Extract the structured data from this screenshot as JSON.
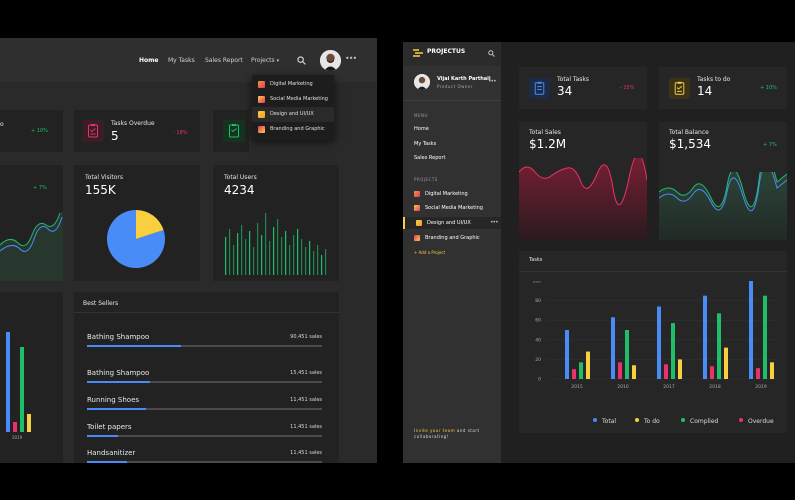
{
  "left": {
    "nav": {
      "home": "Home",
      "my_tasks": "My Tasks",
      "sales_report": "Sales Report",
      "projects": "Projects"
    },
    "projects_dropdown": [
      "Digital Marketing",
      "Social Media Marketing",
      "Design and UI/UX",
      "Branding and Graphic"
    ],
    "cards": {
      "cut_delta": "+ 10%",
      "tasks_overdue": {
        "label": "Tasks Overdue",
        "value": "5",
        "delta": "- 18%"
      },
      "total_visitors": {
        "label": "Total Visitors",
        "value": "155K"
      },
      "total_users": {
        "label": "Total Users",
        "value": "4234"
      },
      "cut_delta2": "+ 7%"
    },
    "pie": {
      "segments": [
        0.8,
        0.2
      ],
      "colors": [
        "#4a8cf7",
        "#f7cf3f"
      ]
    },
    "best_sellers": {
      "title": "Best Sellers",
      "items": [
        {
          "name": "Bathing Shampoo",
          "sales": "90,451 sales",
          "level": 0.4
        },
        {
          "name": "Bathing Shampoo",
          "sales": "15,451 sales",
          "level": 0.27
        },
        {
          "name": "Running Shoes",
          "sales": "11,451 sales",
          "level": 0.25
        },
        {
          "name": "Toilet papers",
          "sales": "11,451 sales",
          "level": 0.13
        },
        {
          "name": "Handsanitizer",
          "sales": "11,451 sales",
          "level": 0.17
        }
      ]
    },
    "cut_year": "2019"
  },
  "right": {
    "brand": "PROJECTUS",
    "user": {
      "name": "Vijai Karth Parthali",
      "role": "Product Owner"
    },
    "menu_title": "MENU",
    "menu": [
      "Home",
      "My Tasks",
      "Sales Report"
    ],
    "projects_title": "PROJECTS",
    "projects": [
      "Digital Marketing",
      "Social Media Marketing",
      "Design and UI/UX",
      "Branding and Graphic"
    ],
    "add_project": "+ Add a Project",
    "invite": {
      "text": "Invite your team",
      "rest": " and start",
      "rest2": "collaborating!"
    },
    "cards": {
      "total_tasks": {
        "label": "Total Tasks",
        "value": "34",
        "delta": "- 25%"
      },
      "tasks_todo": {
        "label": "Tasks to do",
        "value": "14",
        "delta": "+ 10%"
      },
      "total_sales": {
        "label": "Total Sales",
        "value": "$1.2M"
      },
      "total_balance": {
        "label": "Total Balance",
        "value": "$1,534",
        "delta": "+ 7%"
      }
    },
    "tasks_title": "Tasks"
  },
  "colors": {
    "total": "#4a8cf7",
    "todo": "#f7cf3f",
    "complied": "#1fbf6a",
    "overdue": "#e8336a",
    "orange": "#f29a2e",
    "red": "#e8336a"
  },
  "chart_data": {
    "type": "bar",
    "title": "Tasks",
    "categories": [
      "2015",
      "2016",
      "2017",
      "2018",
      "2019"
    ],
    "ylim": [
      0,
      100
    ],
    "yticks": [
      "100",
      "80",
      "60",
      "40",
      "20",
      "0"
    ],
    "series": [
      {
        "name": "Total",
        "values": [
          50,
          63,
          74,
          85,
          100
        ]
      },
      {
        "name": "Overdue",
        "values": [
          10,
          17,
          15,
          13,
          11
        ]
      },
      {
        "name": "Complied",
        "values": [
          17,
          50,
          57,
          67,
          85
        ]
      },
      {
        "name": "To do",
        "values": [
          28,
          14,
          20,
          32,
          17
        ]
      }
    ],
    "legend_position": "bottom"
  }
}
